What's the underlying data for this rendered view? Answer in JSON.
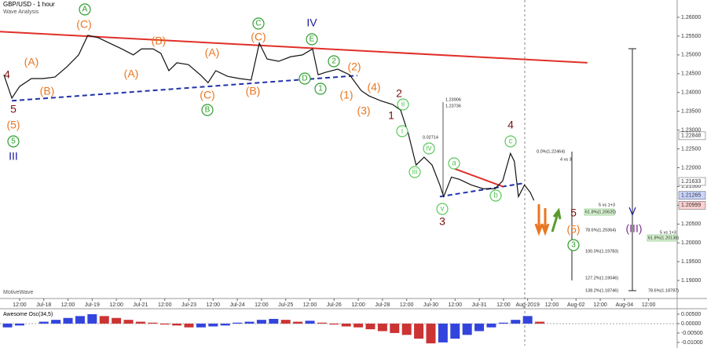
{
  "header": {
    "title": "GBP/USD - 1 hour",
    "subtitle": "Wave Analysis",
    "watermark": "MotiveWave"
  },
  "chart_data": [
    {
      "type": "line",
      "xlim": [
        -0.81,
        27.18
      ],
      "ylim": [
        1.1852,
        1.2646
      ],
      "xticks": [
        {
          "value": 0,
          "label": "12:00"
        },
        {
          "value": 1,
          "label": "Jul-18"
        },
        {
          "value": 2,
          "label": "12:00"
        },
        {
          "value": 3,
          "label": "Jul-19"
        },
        {
          "value": 4,
          "label": "12:00"
        },
        {
          "value": 5,
          "label": "Jul-21"
        },
        {
          "value": 6,
          "label": "12:00"
        },
        {
          "value": 7,
          "label": "Jul-23"
        },
        {
          "value": 8,
          "label": "12:00"
        },
        {
          "value": 9,
          "label": "Jul-24"
        },
        {
          "value": 10,
          "label": "12:00"
        },
        {
          "value": 11,
          "label": "Jul-25"
        },
        {
          "value": 12,
          "label": "12:00"
        },
        {
          "value": 13,
          "label": "Jul-26"
        },
        {
          "value": 14,
          "label": "12:00"
        },
        {
          "value": 15,
          "label": "Jul-28"
        },
        {
          "value": 16,
          "label": "12:00"
        },
        {
          "value": 17,
          "label": "Jul-30"
        },
        {
          "value": 18,
          "label": "12:00"
        },
        {
          "value": 19,
          "label": "Jul-31"
        },
        {
          "value": 20,
          "label": "12:00"
        },
        {
          "value": 21,
          "label": "Aug-2019"
        },
        {
          "value": 22,
          "label": "12:00"
        },
        {
          "value": 23,
          "label": "Aug-02"
        },
        {
          "value": 24,
          "label": "12:00"
        },
        {
          "value": 25,
          "label": "Aug-04"
        },
        {
          "value": 26,
          "label": "12:00"
        }
      ],
      "yticks": [
        {
          "value": 1.26,
          "label": "1.26000"
        },
        {
          "value": 1.255,
          "label": "1.25500"
        },
        {
          "value": 1.25,
          "label": "1.25000"
        },
        {
          "value": 1.245,
          "label": "1.24500"
        },
        {
          "value": 1.24,
          "label": "1.24000"
        },
        {
          "value": 1.235,
          "label": "1.23500"
        },
        {
          "value": 1.23,
          "label": "1.23000"
        },
        {
          "value": 1.225,
          "label": "1.22500"
        },
        {
          "value": 1.22,
          "label": "1.22000"
        },
        {
          "value": 1.215,
          "label": "1.21500"
        },
        {
          "value": 1.21,
          "label": "1.21000"
        },
        {
          "value": 1.205,
          "label": "1.20500"
        },
        {
          "value": 1.2,
          "label": "1.20000"
        },
        {
          "value": 1.195,
          "label": "1.19500"
        },
        {
          "value": 1.19,
          "label": "1.19000"
        }
      ],
      "series": [
        {
          "color": "#111111",
          "x": [
            -0.65,
            -0.32,
            0,
            0.49,
            0.97,
            1.46,
            1.95,
            2.44,
            2.82,
            3.24,
            3.73,
            4.22,
            4.7,
            5.04,
            5.52,
            5.84,
            6.17,
            6.5,
            6.98,
            7.47,
            7.79,
            8.11,
            8.6,
            9.09,
            9.57,
            9.91,
            10.23,
            10.71,
            11.2,
            11.69,
            12.11,
            12.34,
            12.66,
            13.15,
            13.64,
            14.12,
            14.44,
            14.93,
            15.42,
            15.75,
            16.07,
            16.39,
            16.72,
            17.05,
            17.37,
            17.53,
            17.85,
            18.18,
            18.67,
            19.16,
            19.65,
            19.97,
            20.29,
            20.45,
            20.62,
            20.87,
            21.11,
            21.26
          ],
          "values": [
            1.2447,
            1.2385,
            1.2416,
            1.2437,
            1.2437,
            1.2441,
            1.2468,
            1.25,
            1.2552,
            1.2546,
            1.2531,
            1.2516,
            1.25,
            1.2516,
            1.2516,
            1.2504,
            1.2458,
            1.2479,
            1.2474,
            1.2447,
            1.2426,
            1.2458,
            1.2443,
            1.2437,
            1.2433,
            1.2531,
            1.2489,
            1.2483,
            1.2495,
            1.25,
            1.2516,
            1.2447,
            1.2454,
            1.2462,
            1.2447,
            1.2405,
            1.2391,
            1.2378,
            1.2368,
            1.2353,
            1.229,
            1.2207,
            1.2228,
            1.2207,
            1.2154,
            1.2123,
            1.2175,
            1.2169,
            1.2154,
            1.2144,
            1.2144,
            1.2165,
            1.2238,
            1.2217,
            1.2123,
            1.2154,
            1.2134,
            1.2113
          ]
        }
      ],
      "trendlines": [
        {
          "color": "#e0302a",
          "dashed": false,
          "x": [
            -0.81,
            23.47
          ],
          "values": [
            1.2562,
            1.2479
          ]
        },
        {
          "color": "#2233aa",
          "dashed": true,
          "x": [
            -0.32,
            13.96
          ],
          "values": [
            1.2378,
            1.2445
          ]
        },
        {
          "color": "#2233aa",
          "dashed": true,
          "x": [
            17.37,
            20.87
          ],
          "values": [
            1.2123,
            1.2159
          ]
        },
        {
          "color": "#e0302a",
          "dashed": false,
          "x": [
            17.86,
            19.97
          ],
          "values": [
            1.22,
            1.215
          ]
        }
      ],
      "price_tags": [
        {
          "value": 1.22848,
          "color": "#ffffff"
        },
        {
          "value": 1.21633,
          "color": "#ffffff"
        },
        {
          "value": 1.21265,
          "color": "#c8d4ff"
        },
        {
          "value": 1.20999,
          "color": "#ffd0d0"
        }
      ],
      "wave_labels": [
        {
          "text": "4",
          "color": "#7a1010"
        },
        {
          "text": "5",
          "color": "#7a1010"
        },
        {
          "text": "(5)",
          "color": "#e87722"
        },
        {
          "text": "5",
          "color": "#2e9e2e",
          "circled": true
        },
        {
          "text": "III",
          "color": "#1a1aa0"
        },
        {
          "text": "(A)",
          "color": "#e87722"
        },
        {
          "text": "(B)",
          "color": "#e87722"
        },
        {
          "text": "A",
          "color": "#2e9e2e",
          "circled": true
        },
        {
          "text": "(C)",
          "color": "#e87722"
        },
        {
          "text": "(A)",
          "color": "#e87722"
        },
        {
          "text": "(B)",
          "color": "#e87722"
        },
        {
          "text": "(A)",
          "color": "#e87722"
        },
        {
          "text": "(C)",
          "color": "#e87722"
        },
        {
          "text": "B",
          "color": "#2e9e2e",
          "circled": true
        },
        {
          "text": "(B)",
          "color": "#e87722"
        },
        {
          "text": "C",
          "color": "#2e9e2e",
          "circled": true
        },
        {
          "text": "(C)",
          "color": "#e87722"
        },
        {
          "text": "IV",
          "color": "#1a1aa0"
        },
        {
          "text": "E",
          "color": "#2e9e2e",
          "circled": true
        },
        {
          "text": "D",
          "color": "#2e9e2e",
          "circled": true
        },
        {
          "text": "1",
          "color": "#2e9e2e",
          "circled": true
        },
        {
          "text": "2",
          "color": "#2e9e2e",
          "circled": true
        },
        {
          "text": "(2)",
          "color": "#e87722"
        },
        {
          "text": "(1)",
          "color": "#e87722"
        },
        {
          "text": "(4)",
          "color": "#e87722"
        },
        {
          "text": "(3)",
          "color": "#e87722"
        },
        {
          "text": "2",
          "color": "#7a1010"
        },
        {
          "text": "1",
          "color": "#7a1010"
        },
        {
          "text": "ii",
          "color": "#5cc85c",
          "circled": true
        },
        {
          "text": "i",
          "color": "#5cc85c",
          "circled": true
        },
        {
          "text": "iv",
          "color": "#5cc85c",
          "circled": true
        },
        {
          "text": "iii",
          "color": "#5cc85c",
          "circled": true
        },
        {
          "text": "a",
          "color": "#5cc85c",
          "circled": true
        },
        {
          "text": "v",
          "color": "#5cc85c",
          "circled": true
        },
        {
          "text": "3",
          "color": "#7a1010"
        },
        {
          "text": "b",
          "color": "#5cc85c",
          "circled": true
        },
        {
          "text": "c",
          "color": "#5cc85c",
          "circled": true
        },
        {
          "text": "4",
          "color": "#7a1010"
        },
        {
          "text": "5",
          "color": "#7a1010"
        },
        {
          "text": "(5)",
          "color": "#e87722"
        },
        {
          "text": "3",
          "color": "#2e9e2e",
          "circled": true
        },
        {
          "text": "V",
          "color": "#1a1aa0"
        },
        {
          "text": "(III)",
          "color": "#7b2d8e"
        }
      ],
      "fib_labels": [
        {
          "text": "0.0%(1.22464)"
        },
        {
          "text": "4 vs 3"
        },
        {
          "text": "5 vs 1+3"
        },
        {
          "text": "61.8%(1.20620)",
          "highlight": true
        },
        {
          "text": "78.6%(1.20364)"
        },
        {
          "text": "100.0%(1.19783)"
        },
        {
          "text": "127.2%(1.19046)"
        },
        {
          "text": "138.2%(1.18746)"
        },
        {
          "text": "5 vs 1+3"
        },
        {
          "text": "61.8%(1.20138)",
          "highlight": true
        },
        {
          "text": "78.6%(1.18787)"
        },
        {
          "text": "1.23906"
        },
        {
          "text": "1.23736"
        },
        {
          "text": "0.02714"
        }
      ]
    },
    {
      "type": "bar",
      "title": "Awesome Osc(34,5)",
      "up_color": "#3344dd",
      "down_color": "#cc3333",
      "xlim": [
        -0.81,
        27.18
      ],
      "ylim": [
        -0.0117,
        0.0079
      ],
      "yticks": [
        {
          "value": 0.005,
          "label": "0.00500"
        },
        {
          "value": 0,
          "label": "0.00000"
        },
        {
          "value": -0.005,
          "label": "-0.00500"
        },
        {
          "value": -0.01,
          "label": "-0.01000"
        }
      ],
      "x": [
        -0.5,
        0,
        0.5,
        1,
        1.5,
        2,
        2.5,
        3,
        3.5,
        4,
        4.5,
        5,
        5.5,
        6,
        6.5,
        7,
        7.5,
        8,
        8.5,
        9,
        9.5,
        10,
        10.5,
        11,
        11.5,
        12,
        12.5,
        13,
        13.5,
        14,
        14.5,
        15,
        15.5,
        16,
        16.5,
        17,
        17.5,
        18,
        18.5,
        19,
        19.5,
        20,
        20.5,
        21,
        21.5
      ],
      "values": [
        -0.002,
        -0.001,
        0,
        0.001,
        0.002,
        0.003,
        0.004,
        0.005,
        0.004,
        0.003,
        0.002,
        0.001,
        0.0005,
        -0.0005,
        -0.001,
        -0.002,
        -0.002,
        -0.0015,
        -0.001,
        0.0005,
        0.001,
        0.002,
        0.0025,
        0.002,
        0.001,
        0.0015,
        0.0005,
        -0.0005,
        -0.0015,
        -0.002,
        -0.003,
        -0.004,
        -0.005,
        -0.006,
        -0.008,
        -0.0105,
        -0.01,
        -0.008,
        -0.006,
        -0.004,
        -0.002,
        0.0005,
        0.002,
        0.004,
        0.001
      ]
    }
  ]
}
